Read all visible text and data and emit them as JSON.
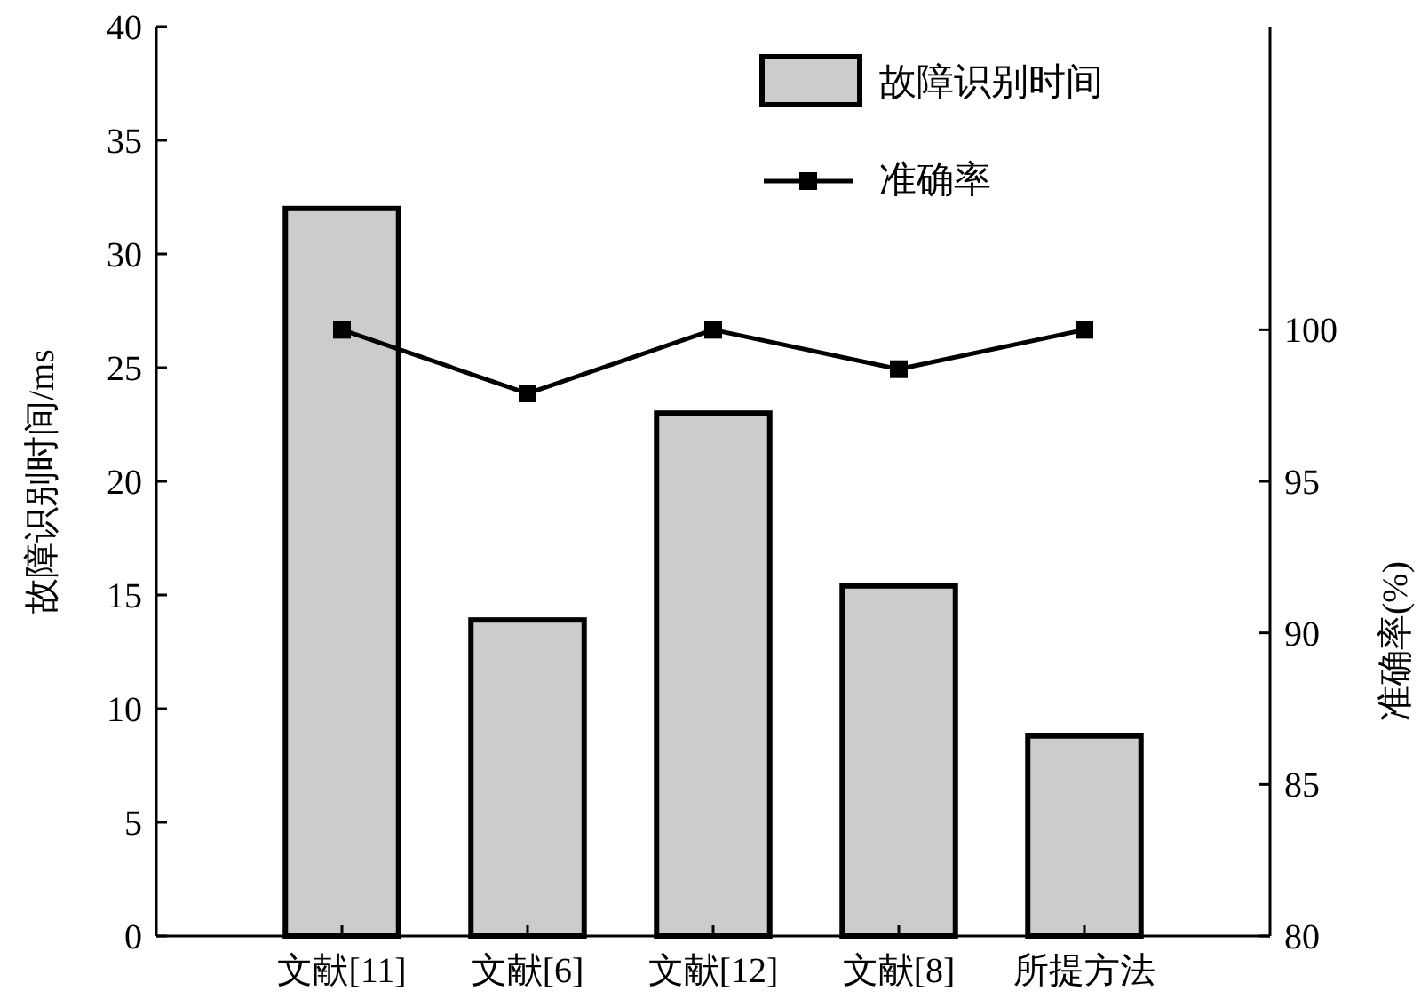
{
  "chart_data": {
    "type": "bar",
    "categories": [
      "文献[11]",
      "文献[6]",
      "文献[12]",
      "文献[8]",
      "所提方法"
    ],
    "ylabel": "故障识别时间/ms",
    "y2label": "准确率(%)",
    "ylim": [
      0,
      40
    ],
    "yticks": [
      0,
      5,
      10,
      15,
      20,
      25,
      30,
      35,
      40
    ],
    "y2lim": [
      80,
      110
    ],
    "y2ticks": [
      80,
      85,
      90,
      95,
      100
    ],
    "series": [
      {
        "name": "故障识别时间",
        "color": "#cccccc",
        "values": [
          32.0,
          13.9,
          23.0,
          15.4,
          8.8
        ]
      },
      {
        "name": "准确率",
        "type": "line",
        "axis": "y2",
        "color": "#000000",
        "marker": "square",
        "values": [
          100,
          97.9,
          100,
          98.7,
          100
        ]
      }
    ],
    "grid": false,
    "legend": "top right"
  }
}
